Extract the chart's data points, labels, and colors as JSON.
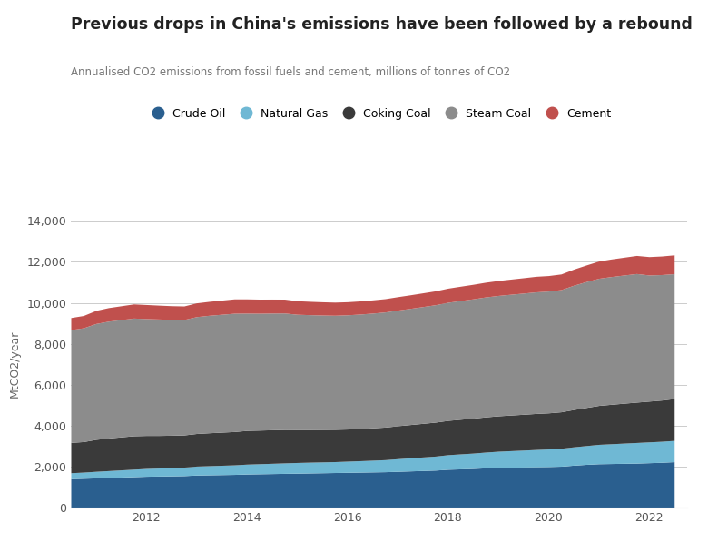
{
  "title": "Previous drops in China's emissions have been followed by a rebound",
  "subtitle": "Annualised CO2 emissions from fossil fuels and cement, millions of tonnes of CO2",
  "ylabel": "MtCO2/year",
  "title_color": "#222222",
  "subtitle_color": "#777777",
  "background_color": "#ffffff",
  "grid_color": "#cccccc",
  "years": [
    2010.5,
    2010.75,
    2011.0,
    2011.25,
    2011.5,
    2011.75,
    2012.0,
    2012.25,
    2012.5,
    2012.75,
    2013.0,
    2013.25,
    2013.5,
    2013.75,
    2014.0,
    2014.25,
    2014.5,
    2014.75,
    2015.0,
    2015.25,
    2015.5,
    2015.75,
    2016.0,
    2016.25,
    2016.5,
    2016.75,
    2017.0,
    2017.25,
    2017.5,
    2017.75,
    2018.0,
    2018.25,
    2018.5,
    2018.75,
    2019.0,
    2019.25,
    2019.5,
    2019.75,
    2020.0,
    2020.25,
    2020.5,
    2020.75,
    2021.0,
    2021.25,
    2021.5,
    2021.75,
    2022.0,
    2022.25,
    2022.5
  ],
  "crude_oil": [
    1420,
    1440,
    1460,
    1480,
    1500,
    1520,
    1540,
    1550,
    1560,
    1570,
    1600,
    1610,
    1620,
    1630,
    1650,
    1660,
    1670,
    1680,
    1690,
    1700,
    1710,
    1720,
    1730,
    1740,
    1750,
    1760,
    1780,
    1800,
    1820,
    1840,
    1880,
    1900,
    1920,
    1950,
    1970,
    1980,
    1990,
    2000,
    2010,
    2030,
    2080,
    2120,
    2150,
    2160,
    2170,
    2180,
    2200,
    2220,
    2250
  ],
  "natural_gas": [
    290,
    300,
    320,
    335,
    350,
    365,
    380,
    390,
    400,
    415,
    435,
    445,
    455,
    465,
    480,
    490,
    500,
    510,
    520,
    525,
    528,
    532,
    545,
    558,
    572,
    588,
    615,
    640,
    660,
    682,
    710,
    730,
    748,
    768,
    790,
    808,
    825,
    845,
    860,
    875,
    895,
    915,
    945,
    965,
    985,
    1005,
    1015,
    1025,
    1038
  ],
  "coking_coal": [
    1480,
    1490,
    1560,
    1590,
    1610,
    1630,
    1610,
    1590,
    1580,
    1570,
    1590,
    1605,
    1615,
    1625,
    1645,
    1640,
    1638,
    1632,
    1610,
    1595,
    1585,
    1575,
    1568,
    1572,
    1580,
    1590,
    1608,
    1622,
    1640,
    1658,
    1675,
    1690,
    1705,
    1718,
    1728,
    1738,
    1748,
    1758,
    1762,
    1778,
    1820,
    1860,
    1900,
    1925,
    1948,
    1970,
    1990,
    2010,
    2040
  ],
  "steam_coal": [
    5500,
    5550,
    5650,
    5700,
    5720,
    5740,
    5700,
    5680,
    5650,
    5630,
    5700,
    5730,
    5750,
    5770,
    5720,
    5700,
    5690,
    5680,
    5620,
    5600,
    5580,
    5565,
    5570,
    5580,
    5595,
    5615,
    5640,
    5665,
    5695,
    5725,
    5760,
    5790,
    5820,
    5850,
    5870,
    5890,
    5910,
    5930,
    5940,
    5960,
    6060,
    6140,
    6200,
    6230,
    6250,
    6270,
    6150,
    6120,
    6090
  ],
  "cement": [
    590,
    600,
    640,
    660,
    675,
    690,
    685,
    675,
    668,
    660,
    672,
    680,
    690,
    700,
    695,
    688,
    682,
    676,
    660,
    652,
    646,
    640,
    638,
    640,
    644,
    648,
    655,
    662,
    670,
    678,
    688,
    698,
    708,
    718,
    728,
    738,
    748,
    758,
    755,
    762,
    785,
    808,
    840,
    855,
    868,
    882,
    895,
    905,
    918
  ],
  "colors": {
    "crude_oil": "#2a5f8f",
    "natural_gas": "#6fb8d4",
    "coking_coal": "#3a3a3a",
    "steam_coal": "#8c8c8c",
    "cement": "#c0504d"
  },
  "legend_labels": [
    "Crude Oil",
    "Natural Gas",
    "Coking Coal",
    "Steam Coal",
    "Cement"
  ],
  "ylim": [
    0,
    14000
  ],
  "yticks": [
    0,
    2000,
    4000,
    6000,
    8000,
    10000,
    12000,
    14000
  ],
  "xlim_start": 2010.5,
  "xlim_end": 2022.75,
  "xticks": [
    2012,
    2014,
    2016,
    2018,
    2020,
    2022
  ]
}
